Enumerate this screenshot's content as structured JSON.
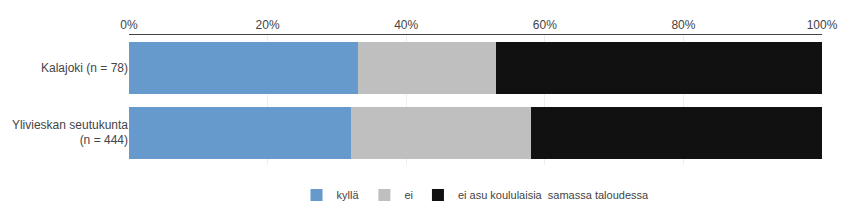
{
  "chart_data": {
    "type": "bar",
    "orientation": "horizontal",
    "stacked": true,
    "categories": [
      "Kalajoki (n = 78)",
      "Ylivieskan seutukunta\n(n = 444)"
    ],
    "series": [
      {
        "name": "kyllä",
        "color": "#6699CC",
        "values": [
          33,
          32
        ]
      },
      {
        "name": "ei",
        "color": "#BFBFBF",
        "values": [
          20,
          26
        ]
      },
      {
        "name": "ei asu koululaisia  samassa taloudessa",
        "color": "#111111",
        "values": [
          47,
          42
        ]
      }
    ],
    "xlim": [
      0,
      100
    ],
    "xticks": [
      {
        "value": 0,
        "label": "0%"
      },
      {
        "value": 20,
        "label": "20%"
      },
      {
        "value": 40,
        "label": "40%"
      },
      {
        "value": 60,
        "label": "60%"
      },
      {
        "value": 80,
        "label": "80%"
      },
      {
        "value": 100,
        "label": "100%"
      }
    ],
    "grid": true,
    "legend": "bottom"
  }
}
